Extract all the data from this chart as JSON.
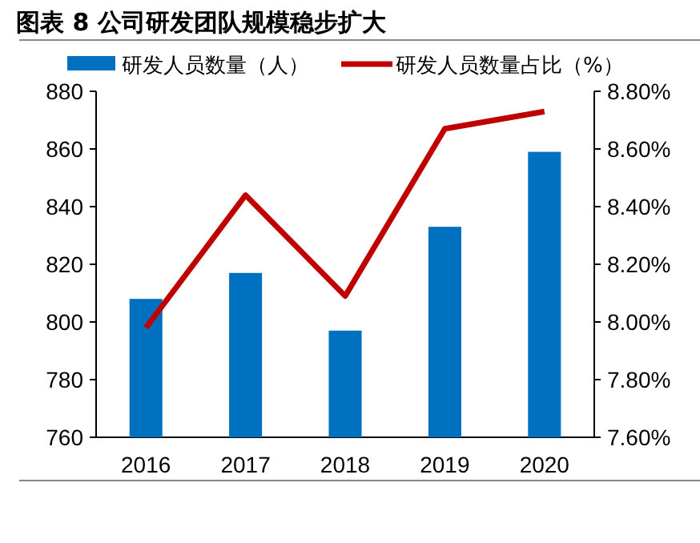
{
  "chart_data": {
    "type": "bar",
    "title": "图表 8 公司研发团队规模稳步扩大",
    "categories": [
      "2016",
      "2017",
      "2018",
      "2019",
      "2020"
    ],
    "series": [
      {
        "name": "研发人员数量（人）",
        "color": "#0070c0",
        "values": [
          808,
          817,
          797,
          833,
          859
        ]
      },
      {
        "name": "研发人员数量占比（%）",
        "type": "line",
        "axis": "y2",
        "color": "#c00000",
        "values": [
          7.98,
          8.44,
          8.09,
          8.67,
          8.73
        ]
      }
    ],
    "ylim": [
      760,
      880
    ],
    "yticks": [
      760,
      780,
      800,
      820,
      840,
      860,
      880
    ],
    "y2lim": [
      7.6,
      8.8
    ],
    "y2ticks": [
      {
        "value": 7.6,
        "label": "7.60%"
      },
      {
        "value": 7.8,
        "label": "7.80%"
      },
      {
        "value": 8.0,
        "label": "8.00%"
      },
      {
        "value": 8.2,
        "label": "8.20%"
      },
      {
        "value": 8.4,
        "label": "8.40%"
      },
      {
        "value": 8.6,
        "label": "8.60%"
      },
      {
        "value": 8.8,
        "label": "8.80%"
      }
    ],
    "grid": false,
    "legend": "top",
    "marker": "none",
    "line_style": "solid"
  }
}
